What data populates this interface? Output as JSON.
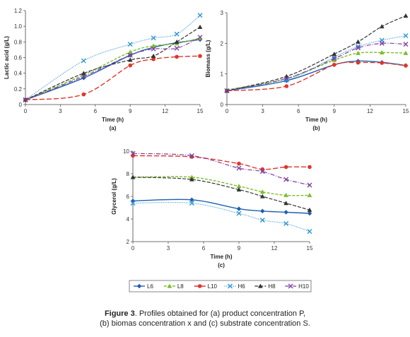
{
  "series_styles": [
    {
      "name": "L6",
      "color": "#1f5fb0",
      "dash": "",
      "marker": "diamond",
      "width": 1.4
    },
    {
      "name": "L8",
      "color": "#7bbf2a",
      "dash": "4,2",
      "marker": "triangle",
      "width": 1.4
    },
    {
      "name": "L10",
      "color": "#e0352c",
      "dash": "7,3",
      "marker": "circle",
      "width": 1.4
    },
    {
      "name": "H6",
      "color": "#2e96d6",
      "dash": "1,1.5",
      "marker": "x",
      "width": 1.2
    },
    {
      "name": "H8",
      "color": "#333333",
      "dash": "5,2",
      "marker": "triangle",
      "width": 1.2
    },
    {
      "name": "H10",
      "color": "#7e3f9e",
      "dash": "6,2,1,2",
      "marker": "x",
      "width": 1.2
    }
  ],
  "chart_data": [
    {
      "type": "line",
      "sublabel": "(a)",
      "xlabel": "Time (h)",
      "ylabel": "Lactic acid (g/L)",
      "xlim": [
        0,
        15
      ],
      "ylim": [
        0,
        1.2
      ],
      "xticks": [
        "0",
        "3",
        "6",
        "9",
        "12",
        "15"
      ],
      "yticks": [
        "0",
        "0.2",
        "0.4",
        "0.6",
        "0.8",
        "1.0",
        "1.2"
      ],
      "x": [
        0,
        5,
        9,
        11,
        13,
        15
      ],
      "series": [
        {
          "name": "L6",
          "values": [
            0.06,
            0.34,
            0.63,
            0.73,
            0.79,
            0.83
          ]
        },
        {
          "name": "L8",
          "values": [
            0.06,
            0.38,
            0.67,
            0.75,
            0.78,
            0.85
          ]
        },
        {
          "name": "L10",
          "values": [
            0.06,
            0.13,
            0.5,
            0.58,
            0.61,
            0.62
          ]
        },
        {
          "name": "H6",
          "values": [
            0.06,
            0.56,
            0.77,
            0.85,
            0.9,
            1.14
          ]
        },
        {
          "name": "H8",
          "values": [
            0.06,
            0.4,
            0.57,
            0.62,
            0.8,
            0.99
          ]
        },
        {
          "name": "H10",
          "values": [
            0.06,
            0.36,
            0.63,
            0.71,
            0.72,
            0.86
          ]
        }
      ]
    },
    {
      "type": "line",
      "sublabel": "(b)",
      "xlabel": "Time (h)",
      "ylabel": "Biomass (g/L)",
      "xlim": [
        0,
        15
      ],
      "ylim": [
        0,
        3
      ],
      "xticks": [
        "0",
        "3",
        "6",
        "9",
        "12",
        "15"
      ],
      "yticks": [
        "0",
        "1",
        "2",
        "3"
      ],
      "x": [
        0,
        5,
        9,
        11,
        13,
        15
      ],
      "series": [
        {
          "name": "L6",
          "values": [
            0.45,
            0.78,
            1.3,
            1.42,
            1.38,
            1.28
          ]
        },
        {
          "name": "L8",
          "values": [
            0.48,
            0.85,
            1.45,
            1.68,
            1.7,
            1.68
          ]
        },
        {
          "name": "L10",
          "values": [
            0.45,
            0.6,
            1.3,
            1.37,
            1.36,
            1.27
          ]
        },
        {
          "name": "H6",
          "values": [
            0.45,
            0.8,
            1.55,
            1.9,
            2.1,
            2.25
          ]
        },
        {
          "name": "H8",
          "values": [
            0.45,
            0.92,
            1.65,
            2.05,
            2.55,
            2.9
          ]
        },
        {
          "name": "H10",
          "values": [
            0.45,
            0.85,
            1.5,
            1.85,
            2.0,
            1.97
          ]
        }
      ]
    },
    {
      "type": "line",
      "sublabel": "(c)",
      "xlabel": "Time (h)",
      "ylabel": "Glycerol (g/L)",
      "xlim": [
        0,
        15
      ],
      "ylim": [
        2,
        10
      ],
      "xticks": [
        "0",
        "3",
        "6",
        "9",
        "12",
        "15"
      ],
      "yticks": [
        "2",
        "4",
        "6",
        "8",
        "10"
      ],
      "x": [
        0,
        5,
        9,
        11,
        13,
        15
      ],
      "series": [
        {
          "name": "L6",
          "values": [
            5.6,
            5.7,
            4.9,
            4.7,
            4.6,
            4.5
          ]
        },
        {
          "name": "L8",
          "values": [
            7.7,
            7.7,
            6.9,
            6.4,
            6.1,
            6.1
          ]
        },
        {
          "name": "L10",
          "values": [
            9.6,
            9.5,
            8.9,
            8.4,
            8.6,
            8.6
          ]
        },
        {
          "name": "H6",
          "values": [
            5.4,
            5.4,
            4.5,
            3.9,
            3.6,
            2.9
          ]
        },
        {
          "name": "H8",
          "values": [
            7.7,
            7.5,
            6.6,
            6.0,
            5.4,
            4.8
          ]
        },
        {
          "name": "H10",
          "values": [
            9.8,
            9.6,
            8.5,
            8.2,
            7.5,
            7.0
          ]
        }
      ]
    }
  ],
  "legend": [
    "L6",
    "L8",
    "L10",
    "H6",
    "H8",
    "H10"
  ],
  "caption": {
    "label": "Figure 3",
    "text": ". Profiles obtained for (a) product concentration P,",
    "line2": "(b) biomas concentration x and (c) substrate concentration S."
  }
}
